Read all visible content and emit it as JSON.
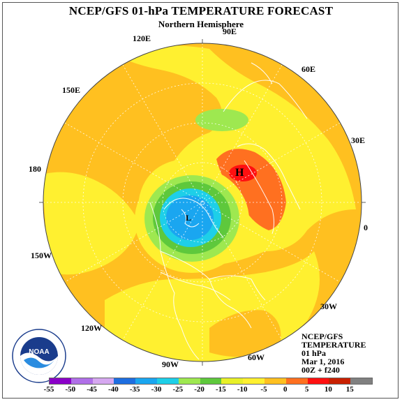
{
  "title": "NCEP/GFS 01-hPa TEMPERATURE FORECAST",
  "subtitle": "Northern Hemisphere",
  "longitude_labels": {
    "lon_90e": "90E",
    "lon_120e": "120E",
    "lon_60e": "60E",
    "lon_150e": "150E",
    "lon_30e": "30E",
    "lon_180": "180",
    "lon_0": "0",
    "lon_150w": "150W",
    "lon_30w": "30W",
    "lon_120w": "120W",
    "lon_60w": "60W",
    "lon_90w": "90W"
  },
  "high_marker": "H",
  "low_marker": "L",
  "info": {
    "line1": "NCEP/GFS",
    "line2": "TEMPERATURE",
    "line3": "01 hPa",
    "line4": "Mar 1, 2016",
    "line5": "00Z + f240"
  },
  "colorbar": {
    "ticks": [
      "-55",
      "-50",
      "-45",
      "-40",
      "-35",
      "-30",
      "-25",
      "-20",
      "-15",
      "-10",
      "-5",
      "0",
      "5",
      "10",
      "15"
    ],
    "colors": [
      "#8a00c8",
      "#b070e8",
      "#d6a8f0",
      "#1e6ee0",
      "#1aa6f0",
      "#1ecfe8",
      "#9ee850",
      "#5ec83c",
      "#e8f028",
      "#fff030",
      "#ffc020",
      "#ff7020",
      "#ff1010",
      "#c82000",
      "#808080"
    ]
  },
  "logo": {
    "text": "NOAA",
    "ring_text": "NATIONAL OCEANIC AND ATMOSPHERIC ADMINISTRATION · U.S. DEPARTMENT OF COMMERCE"
  }
}
